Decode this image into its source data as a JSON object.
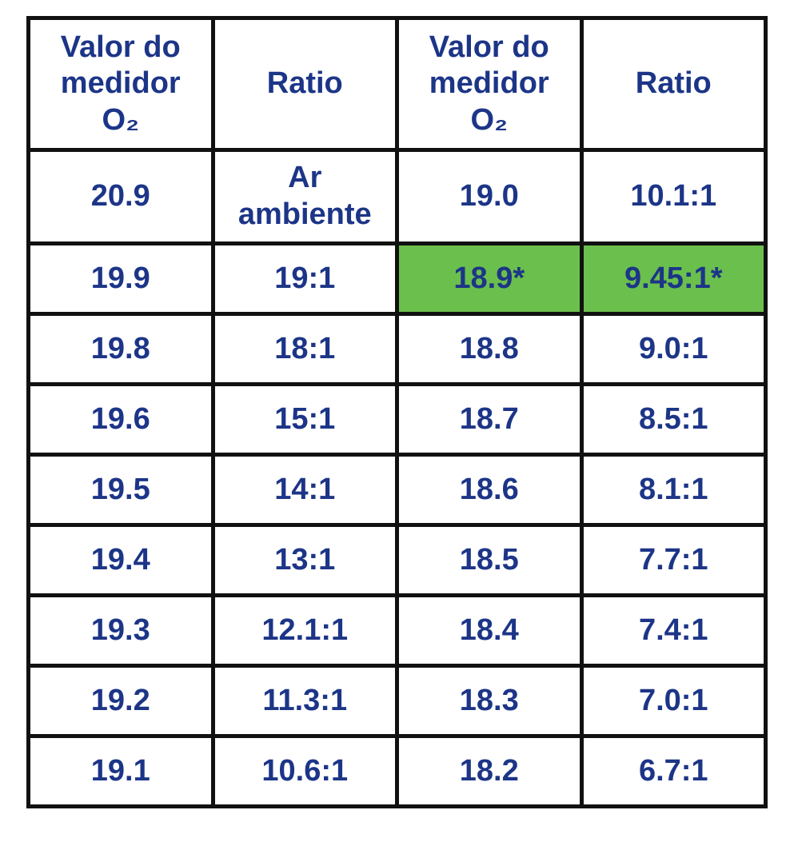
{
  "table": {
    "header": [
      "Valor do medidor O₂",
      "Ratio",
      "Valor do medidor O₂",
      "Ratio"
    ],
    "rows": [
      [
        "20.9",
        "Ar ambiente",
        "19.0",
        "10.1:1"
      ],
      [
        "19.9",
        "19:1",
        "18.9*",
        "9.45:1*"
      ],
      [
        "19.8",
        "18:1",
        "18.8",
        "9.0:1"
      ],
      [
        "19.6",
        "15:1",
        "18.7",
        "8.5:1"
      ],
      [
        "19.5",
        "14:1",
        "18.6",
        "8.1:1"
      ],
      [
        "19.4",
        "13:1",
        "18.5",
        "7.7:1"
      ],
      [
        "19.3",
        "12.1:1",
        "18.4",
        "7.4:1"
      ],
      [
        "19.2",
        "11.3:1",
        "18.3",
        "7.0:1"
      ],
      [
        "19.1",
        "10.6:1",
        "18.2",
        "6.7:1"
      ]
    ]
  }
}
